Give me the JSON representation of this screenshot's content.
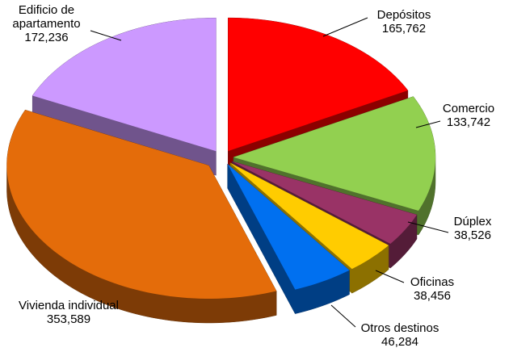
{
  "chart_data": {
    "type": "pie3d",
    "categories": [
      "Depósitos",
      "Comercio",
      "Dúplex",
      "Oficinas",
      "Otros destinos",
      "Vivienda individual",
      "Edificio de apartamento"
    ],
    "values": [
      165762,
      133742,
      38526,
      38456,
      46284,
      353589,
      172236
    ],
    "value_labels": [
      "165,762",
      "133,742",
      "38,526",
      "38,456",
      "46,284",
      "353,589",
      "172,236"
    ],
    "colors": [
      "#ff0000",
      "#92d050",
      "#993366",
      "#ffcc00",
      "#0070f0",
      "#e46c0a",
      "#cc99ff"
    ]
  }
}
